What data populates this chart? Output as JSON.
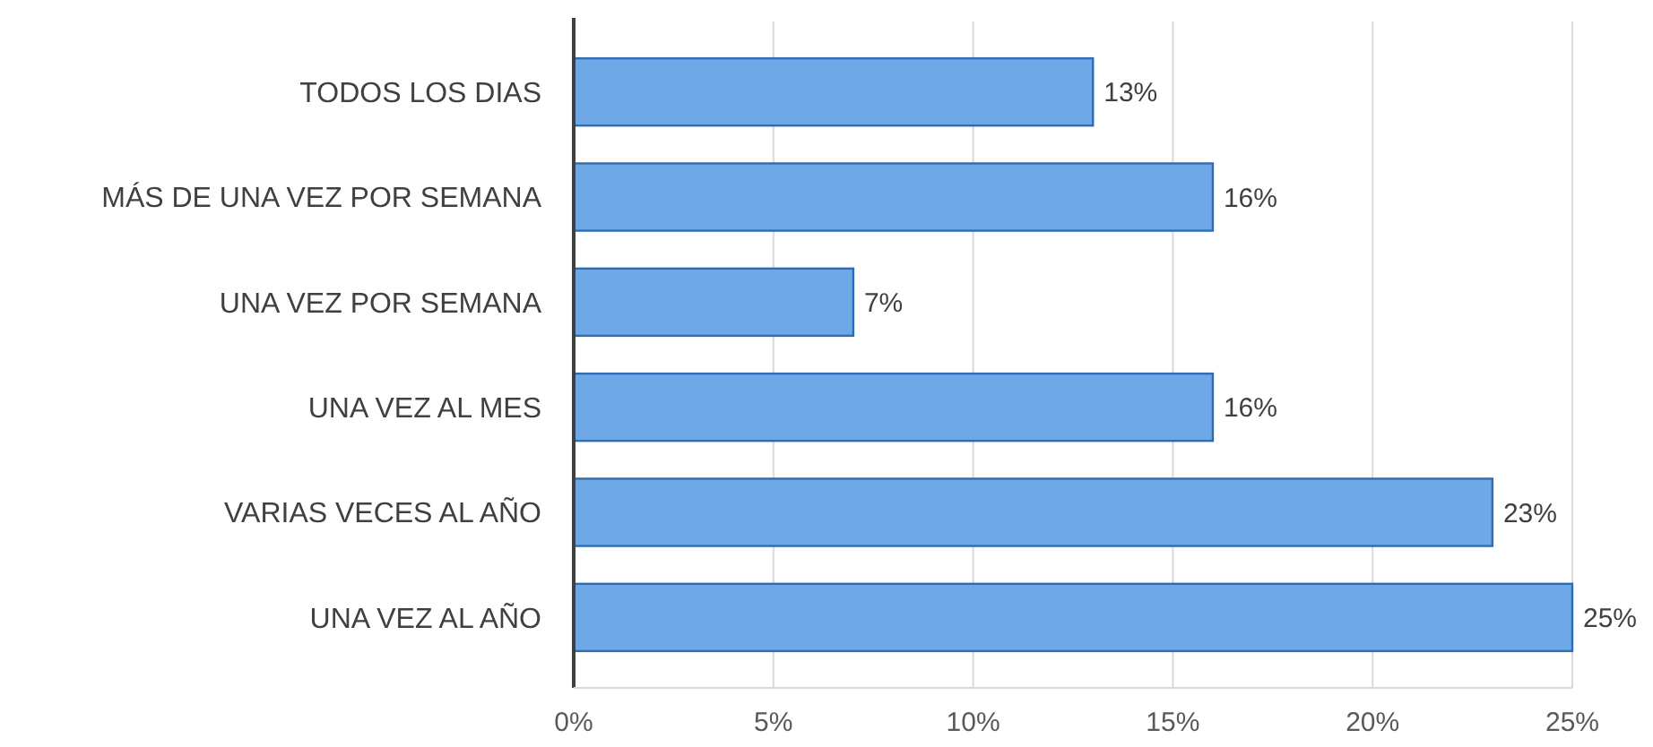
{
  "chart_data": {
    "type": "bar",
    "orientation": "horizontal",
    "categories": [
      "TODOS LOS DIAS",
      "MÁS DE UNA VEZ POR SEMANA",
      "UNA VEZ POR SEMANA",
      "UNA VEZ AL MES",
      "VARIAS VECES AL AÑO",
      "UNA VEZ AL AÑO"
    ],
    "values": [
      13,
      16,
      7,
      16,
      23,
      25
    ],
    "color": "#6fa8e6",
    "value_labels": [
      "13%",
      "16%",
      "7%",
      "16%",
      "23%",
      "25%"
    ],
    "xlim": [
      0,
      25
    ],
    "xticks": [
      {
        "value": 0,
        "label": "0%"
      },
      {
        "value": 5,
        "label": "5%"
      },
      {
        "value": 10,
        "label": "10%"
      },
      {
        "value": 15,
        "label": "15%"
      },
      {
        "value": 20,
        "label": "20%"
      },
      {
        "value": 25,
        "label": "25%"
      }
    ],
    "grid": "x"
  }
}
